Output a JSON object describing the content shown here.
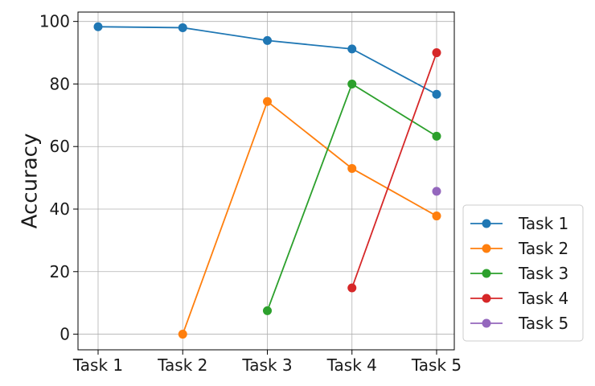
{
  "chart_data": {
    "type": "line",
    "title": "",
    "xlabel": "",
    "ylabel": "Accuracy",
    "categories": [
      "Task 1",
      "Task 2",
      "Task 3",
      "Task 4",
      "Task 5"
    ],
    "ylim": [
      -5,
      103
    ],
    "yticks": [
      0,
      20,
      40,
      60,
      80,
      100
    ],
    "grid": true,
    "legend_position": "outside-bottom-right",
    "series": [
      {
        "name": "Task 1",
        "color": "#1f77b4",
        "values": [
          98.3,
          98.0,
          93.9,
          91.2,
          76.7
        ]
      },
      {
        "name": "Task 2",
        "color": "#ff7f0e",
        "values": [
          null,
          0.0,
          74.4,
          53.0,
          37.8
        ]
      },
      {
        "name": "Task 3",
        "color": "#2ca02c",
        "values": [
          null,
          null,
          7.5,
          80.0,
          63.3
        ]
      },
      {
        "name": "Task 4",
        "color": "#d62728",
        "values": [
          null,
          null,
          null,
          14.8,
          90.0
        ]
      },
      {
        "name": "Task 5",
        "color": "#9467bd",
        "values": [
          null,
          null,
          null,
          null,
          45.7
        ]
      }
    ]
  }
}
